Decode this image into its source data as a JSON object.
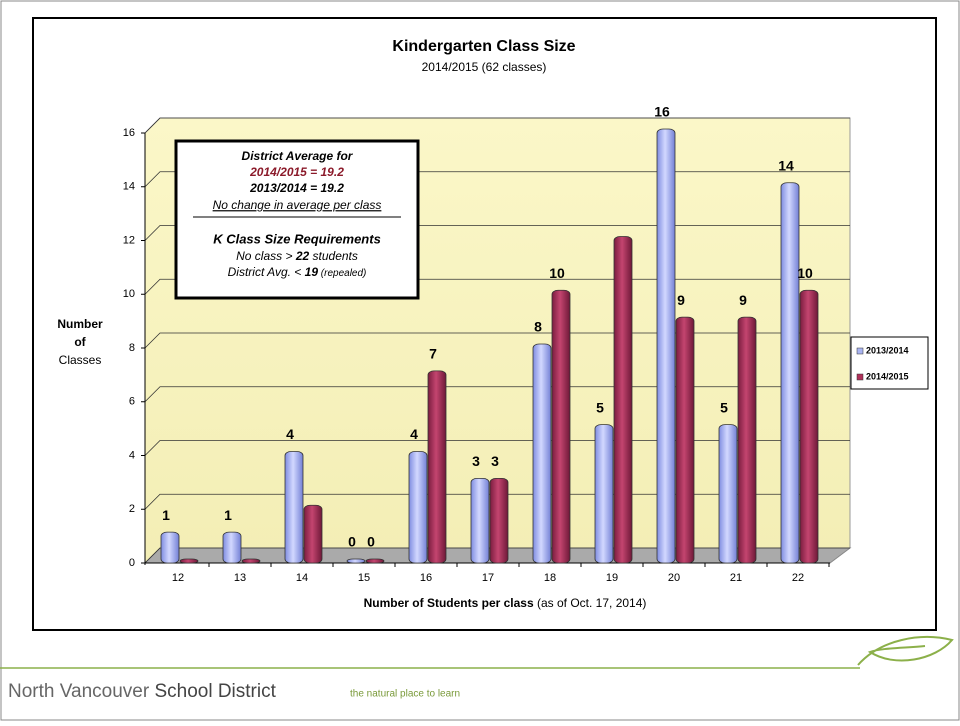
{
  "chart_data": {
    "type": "bar",
    "title": "Kindergarten Class Size",
    "subtitle": "2014/2015 (62 classes)",
    "y_label": [
      "Number",
      "of",
      "Classes"
    ],
    "x_label": "Number of Students per class",
    "x_label_note": "(as of Oct. 17, 2014)",
    "categories": [
      "12",
      "13",
      "14",
      "15",
      "16",
      "17",
      "18",
      "19",
      "20",
      "21",
      "22"
    ],
    "series": [
      {
        "name": "2013/2014",
        "color": "#a9b4f2",
        "values": [
          1,
          1,
          4,
          0,
          4,
          3,
          8,
          5,
          16,
          5,
          14
        ],
        "value_labels": [
          "1",
          "1",
          "4",
          "0",
          "4",
          "3",
          "8",
          "5",
          "16",
          "5",
          "14"
        ]
      },
      {
        "name": "2014/2015",
        "color": "#b0305a",
        "values": [
          0,
          0,
          2,
          0,
          7,
          3,
          10,
          12,
          9,
          9,
          10
        ],
        "value_labels": [
          null,
          null,
          null,
          "0",
          "7",
          "3",
          "10",
          null,
          "9",
          "9",
          "10"
        ]
      }
    ],
    "ylim": [
      0,
      16
    ],
    "yticks": [
      0,
      2,
      4,
      6,
      8,
      10,
      12,
      14,
      16
    ],
    "grid": true,
    "legend": "right",
    "annotation": {
      "lines": [
        [
          "District Average for"
        ],
        [
          "2014/2015 = 19.2"
        ],
        [
          "2013/2014 = 19.2"
        ],
        [
          "No change in average per class"
        ],
        [
          "K Class Size Requirements"
        ],
        [
          "No class > ",
          "22",
          " students"
        ],
        [
          "District Avg. < ",
          "19",
          " (repealed)"
        ]
      ]
    }
  },
  "footer": {
    "name_light": "North Vancouver",
    "name_bold": "School District",
    "tagline": "the natural place to learn"
  }
}
